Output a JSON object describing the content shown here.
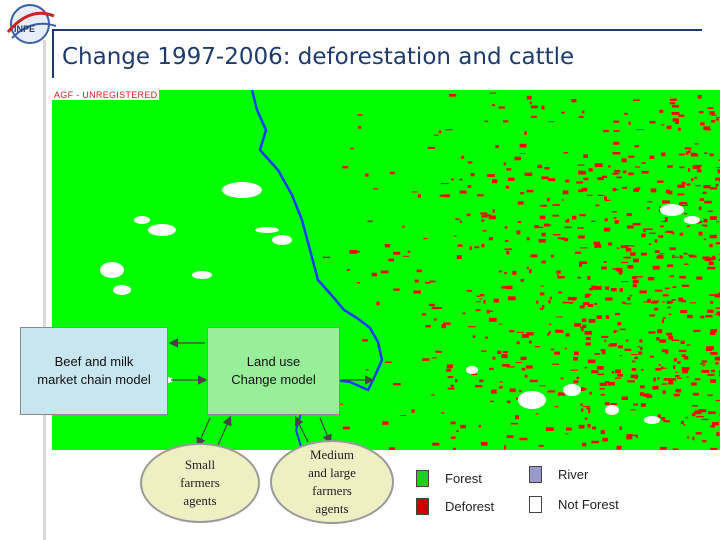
{
  "title": "Change 1997-2006: deforestation and cattle",
  "logo_text": "INPE",
  "map": {
    "watermark": "AGF - UNREGISTERED"
  },
  "boxes": {
    "market": "Beef and milk\nmarket chain model",
    "landuse": "Land use\nChange model"
  },
  "agents": {
    "small": "Small\nfarmers\nagents",
    "medium": "Medium\nand large\nfarmers\nagents"
  },
  "legend": [
    {
      "label": "Forest",
      "color": "#22cc22"
    },
    {
      "label": "River",
      "color": "#9999cc"
    },
    {
      "label": "Deforest",
      "color": "#cc0000"
    },
    {
      "label": "Not Forest",
      "color": "#ffffff"
    }
  ],
  "colors": {
    "forest": "#00ff00",
    "deforest": "#ff0000",
    "river": "#1a3cff",
    "title": "#1f3b6b"
  }
}
